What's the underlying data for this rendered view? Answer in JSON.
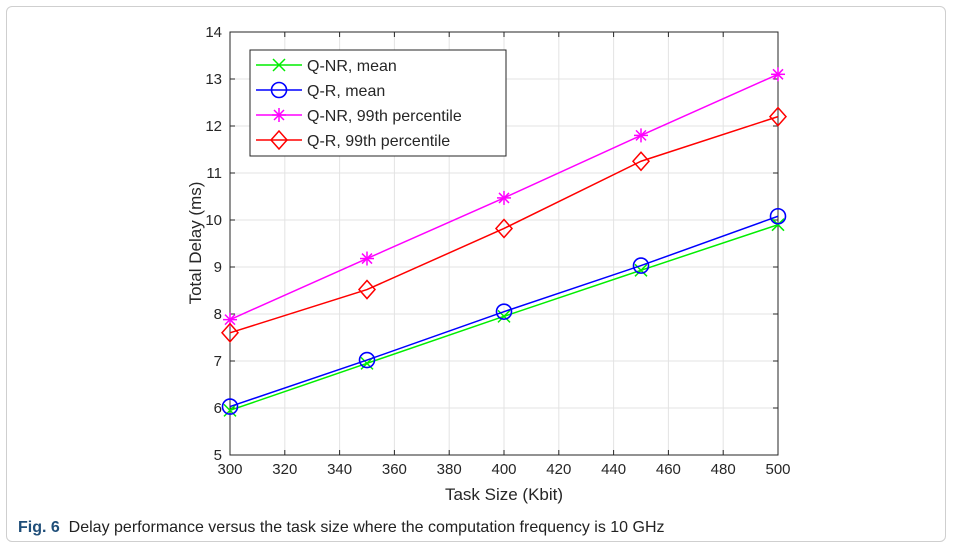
{
  "chart_data": {
    "type": "line",
    "xlabel": "Task Size (Kbit)",
    "ylabel": "Total Delay (ms)",
    "xlim": [
      300,
      500
    ],
    "ylim": [
      5,
      14
    ],
    "xticks": [
      300,
      320,
      340,
      360,
      380,
      400,
      420,
      440,
      460,
      480,
      500
    ],
    "yticks": [
      5,
      6,
      7,
      8,
      9,
      10,
      11,
      12,
      13,
      14
    ],
    "grid": true,
    "legend_position": "top-left",
    "x": [
      300,
      350,
      400,
      450,
      500
    ],
    "series": [
      {
        "name": "Q-NR, mean",
        "values": [
          5.95,
          6.95,
          7.95,
          8.93,
          9.9
        ],
        "color": "#00ee00",
        "marker": "x"
      },
      {
        "name": "Q-R, mean",
        "values": [
          6.03,
          7.02,
          8.05,
          9.03,
          10.08
        ],
        "color": "#0000ff",
        "marker": "circle"
      },
      {
        "name": "Q-NR, 99th percentile",
        "values": [
          7.88,
          9.18,
          10.47,
          11.8,
          13.1
        ],
        "color": "#ff00ff",
        "marker": "asterisk"
      },
      {
        "name": "Q-R, 99th percentile",
        "values": [
          7.6,
          8.52,
          9.82,
          11.25,
          12.2
        ],
        "color": "#ff0000",
        "marker": "diamond"
      }
    ]
  },
  "caption": {
    "label": "Fig. 6",
    "text": "Delay performance versus the task size where the computation frequency is 10 GHz"
  }
}
